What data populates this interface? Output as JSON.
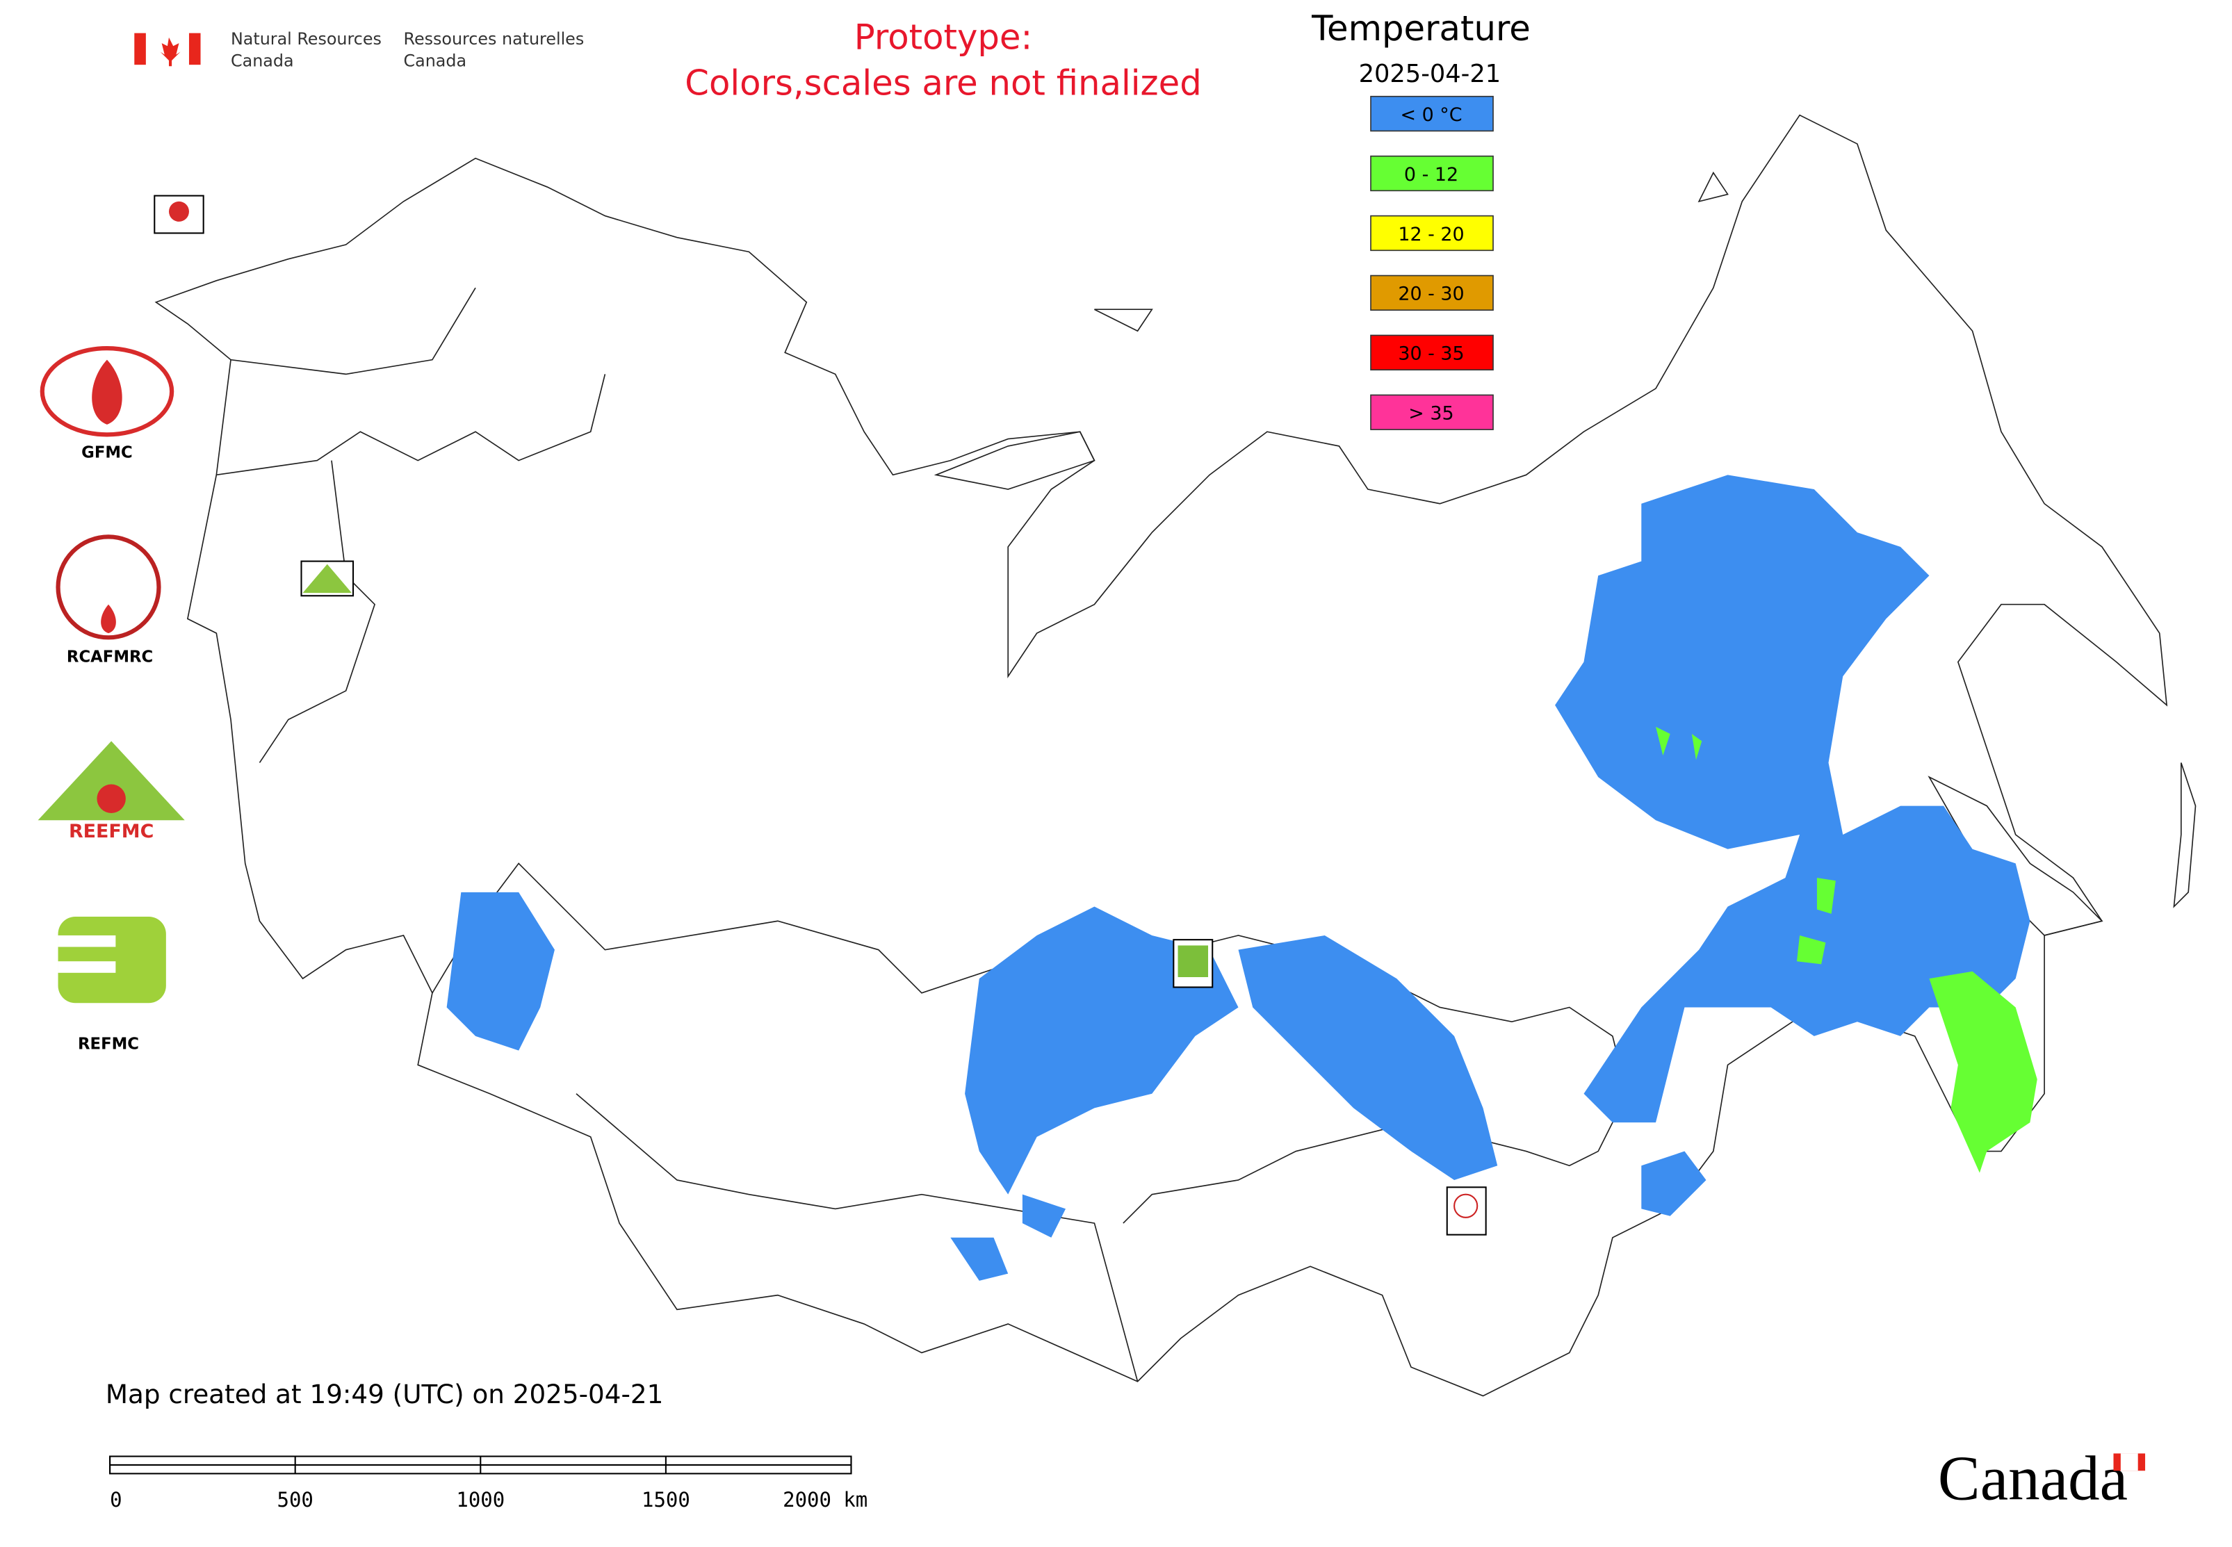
{
  "header": {
    "agency_en": "Natural Resources",
    "agency_en_2": "Canada",
    "agency_fr": "Ressources naturelles",
    "agency_fr_2": "Canada",
    "notice_line1": "Prototype:",
    "notice_line2": "Colors,scales are not finalized"
  },
  "legend": {
    "title": "Temperature",
    "date": "2025-04-21",
    "items": [
      {
        "label": "< 0 °C",
        "color": "#3d8ef0"
      },
      {
        "label": "0 - 12",
        "color": "#66ff33"
      },
      {
        "label": "12 - 20",
        "color": "#ffff00"
      },
      {
        "label": "20 - 30",
        "color": "#e09a00"
      },
      {
        "label": "30 - 35",
        "color": "#ff0000"
      },
      {
        "label": "> 35",
        "color": "#ff3399"
      }
    ]
  },
  "logos": [
    "GFMC",
    "RCAFMRC",
    "REEFMC",
    "REFMC"
  ],
  "footer": {
    "created": "Map created at 19:49 (UTC) on 2025-04-21",
    "scale_labels": [
      "0",
      "500",
      "1000",
      "1500",
      "2000 km"
    ],
    "wordmark": "Canada"
  }
}
